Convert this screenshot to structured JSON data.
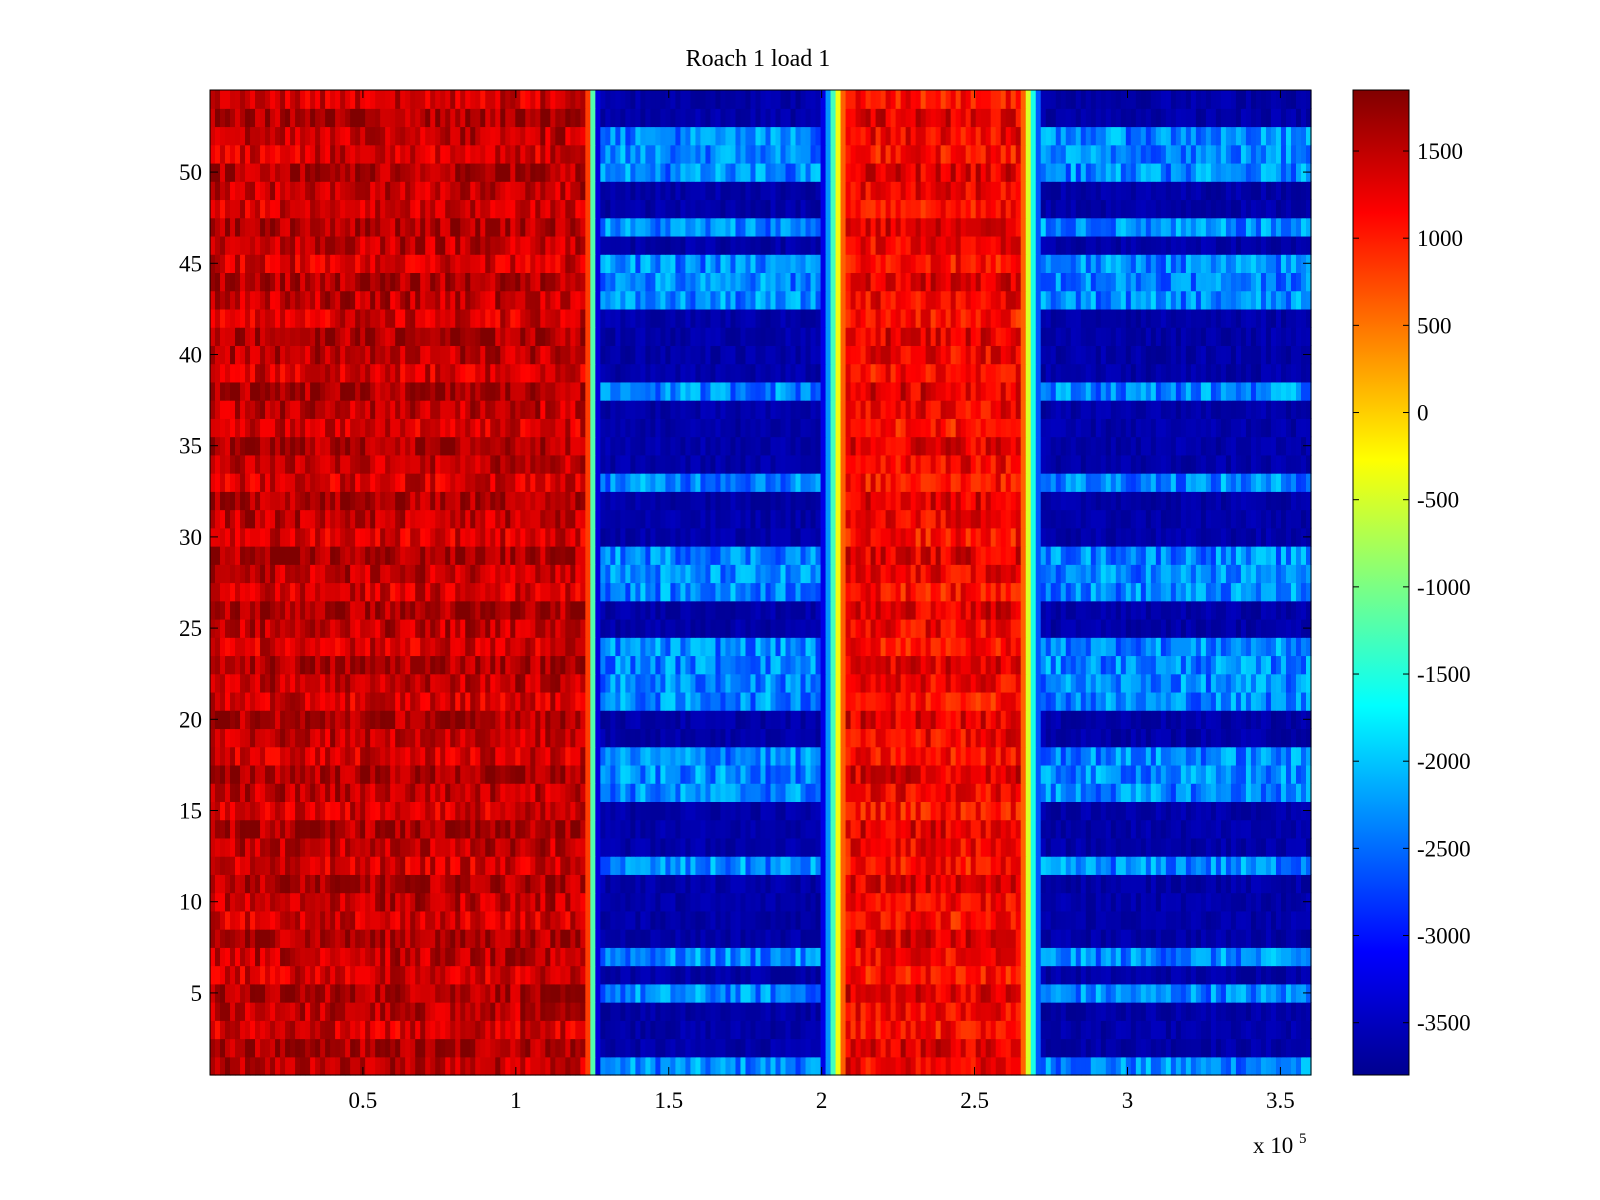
{
  "chart_data": {
    "type": "heatmap",
    "title": "Roach 1 load 1",
    "xlabel": "",
    "ylabel": "",
    "x_multiplier_label": "x 10",
    "x_multiplier_exponent": "5",
    "xlim": [
      0,
      3.6
    ],
    "ylim": [
      0.5,
      54.5
    ],
    "xticks": [
      0.5,
      1,
      1.5,
      2,
      2.5,
      3,
      3.5
    ],
    "xtick_labels": [
      "0.5",
      "1",
      "1.5",
      "2",
      "2.5",
      "3",
      "3.5"
    ],
    "yticks": [
      5,
      10,
      15,
      20,
      25,
      30,
      35,
      40,
      45,
      50
    ],
    "ytick_labels": [
      "5",
      "10",
      "15",
      "20",
      "25",
      "30",
      "35",
      "40",
      "45",
      "50"
    ],
    "rows": 54,
    "colormap": "jet",
    "clim": [
      -3800,
      1850
    ],
    "colorbar_ticks": [
      1500,
      1000,
      500,
      0,
      -500,
      -1000,
      -1500,
      -2000,
      -2500,
      -3000,
      -3500
    ],
    "colorbar_tick_labels": [
      "1500",
      "1000",
      "500",
      "0",
      "-500",
      "-1000",
      "-1500",
      "-2000",
      "-2500",
      "-3000",
      "-3500"
    ],
    "segments": [
      {
        "x_start": 0.0,
        "x_end": 1.23,
        "level": "high",
        "typical_value": 1500
      },
      {
        "x_start": 1.23,
        "x_end": 1.27,
        "level": "transition",
        "typical_value": -500
      },
      {
        "x_start": 1.27,
        "x_end": 2.0,
        "level": "low",
        "typical_value": -3500
      },
      {
        "x_start": 2.0,
        "x_end": 2.08,
        "level": "transition",
        "typical_value": -1500
      },
      {
        "x_start": 2.08,
        "x_end": 2.65,
        "level": "high",
        "typical_value": 1200
      },
      {
        "x_start": 2.65,
        "x_end": 2.72,
        "level": "transition",
        "typical_value": -500
      },
      {
        "x_start": 2.72,
        "x_end": 3.6,
        "level": "low",
        "typical_value": -3400
      }
    ],
    "lighter_blue_rows": [
      1,
      5,
      7,
      12,
      16,
      17,
      18,
      21,
      22,
      23,
      24,
      27,
      28,
      29,
      33,
      38,
      43,
      44,
      45,
      47,
      50,
      51,
      52
    ]
  }
}
